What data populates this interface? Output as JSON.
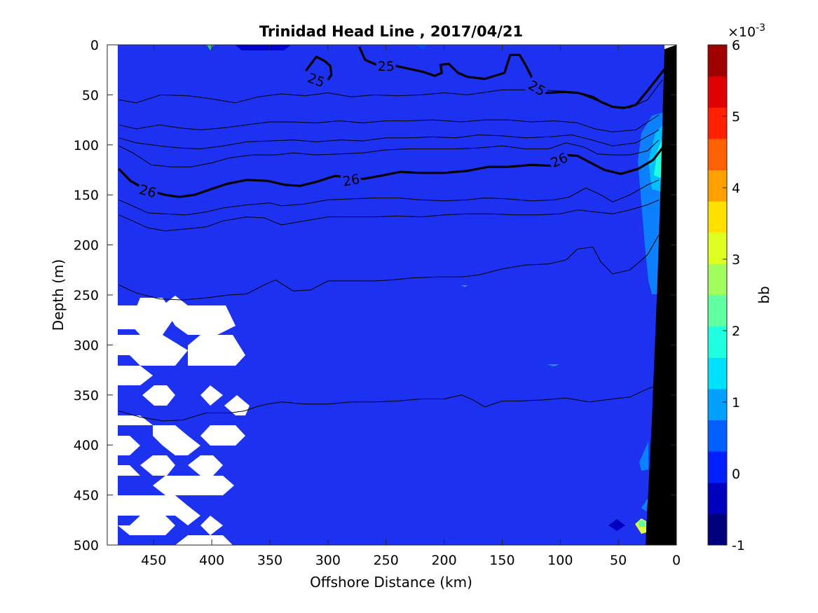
{
  "chart_data": {
    "type": "heatmap",
    "title": "Trinidad Head Line , 2017/04/21",
    "xlabel": "Offshore Distance (km)",
    "ylabel": "Depth (m)",
    "xlim": [
      490,
      0
    ],
    "ylim": [
      0,
      500
    ],
    "x_ticks": [
      "450",
      "400",
      "350",
      "300",
      "250",
      "200",
      "150",
      "100",
      "50",
      "0"
    ],
    "y_ticks": [
      "0",
      "50",
      "100",
      "150",
      "200",
      "250",
      "300",
      "350",
      "400",
      "450",
      "500"
    ],
    "colorbar": {
      "label": "bb",
      "exponent_prefix": "×10",
      "exponent": "-3",
      "range": [
        -1,
        6
      ],
      "tick_labels": [
        "6",
        "5",
        "4",
        "3",
        "2",
        "1",
        "0",
        "-1"
      ],
      "colors": [
        "#00007f",
        "#0000bf",
        "#0020ff",
        "#0060ff",
        "#00a0ff",
        "#00e0ff",
        "#20ffdf",
        "#60ff9f",
        "#a0ff5f",
        "#dfff20",
        "#ffe000",
        "#ffa000",
        "#ff6000",
        "#ff2000",
        "#df0000",
        "#a00000"
      ]
    },
    "background_value_color": "#1c32f0",
    "contour_labels": [
      {
        "text": "25",
        "x": 310,
        "y": 35,
        "angle": 20
      },
      {
        "text": "25",
        "x": 250,
        "y": 21,
        "angle": 0
      },
      {
        "text": "25",
        "x": 120,
        "y": 43,
        "angle": 30
      },
      {
        "text": "26",
        "x": 455,
        "y": 146,
        "angle": 15
      },
      {
        "text": "26",
        "x": 280,
        "y": 135,
        "angle": -10
      },
      {
        "text": "26",
        "x": 101,
        "y": 115,
        "angle": -25
      }
    ],
    "contours": {
      "bold": [
        {
          "level": "25",
          "pts": [
            [
              273,
              2
            ],
            [
              268,
              15
            ],
            [
              258,
              20
            ],
            [
              242,
              21
            ],
            [
              230,
              24
            ],
            [
              218,
              27
            ],
            [
              208,
              31
            ],
            [
              202,
              28
            ],
            [
              203,
              20
            ],
            [
              196,
              19
            ],
            [
              188,
              28
            ],
            [
              180,
              32
            ],
            [
              165,
              34
            ],
            [
              148,
              28
            ],
            [
              143,
              10
            ],
            [
              135,
              10
            ],
            [
              130,
              20
            ],
            [
              122,
              38
            ],
            [
              118,
              48
            ],
            [
              110,
              48
            ],
            [
              98,
              47
            ],
            [
              85,
              48
            ],
            [
              72,
              52
            ],
            [
              65,
              57
            ],
            [
              55,
              62
            ],
            [
              45,
              63
            ],
            [
              35,
              60
            ],
            [
              25,
              46
            ],
            [
              10,
              24
            ]
          ]
        },
        {
          "level": "25",
          "pts": [
            [
              319,
              26
            ],
            [
              310,
              12
            ],
            [
              303,
              16
            ],
            [
              298,
              21
            ],
            [
              297,
              30
            ],
            [
              300,
              35
            ]
          ]
        },
        {
          "level": "26",
          "pts": [
            [
              480,
              124
            ],
            [
              470,
              136
            ],
            [
              456,
              145
            ],
            [
              440,
              150
            ],
            [
              428,
              152
            ],
            [
              415,
              150
            ],
            [
              400,
              144
            ],
            [
              387,
              139
            ],
            [
              370,
              135
            ],
            [
              352,
              136
            ],
            [
              337,
              140
            ],
            [
              324,
              141
            ],
            [
              310,
              137
            ],
            [
              294,
              131
            ],
            [
              270,
              134
            ],
            [
              255,
              131
            ],
            [
              238,
              127
            ],
            [
              220,
              128
            ],
            [
              200,
              128
            ],
            [
              180,
              126
            ],
            [
              162,
              122
            ],
            [
              145,
              122
            ],
            [
              125,
              120
            ],
            [
              105,
              121
            ],
            [
              96,
              110
            ],
            [
              85,
              111
            ],
            [
              72,
              119
            ],
            [
              62,
              125
            ],
            [
              48,
              129
            ],
            [
              33,
              124
            ],
            [
              20,
              115
            ],
            [
              10,
              100
            ]
          ]
        }
      ],
      "thin": [
        [
          [
            480,
            55
          ],
          [
            465,
            58
          ],
          [
            444,
            50
          ],
          [
            420,
            51
          ],
          [
            400,
            54
          ],
          [
            380,
            58
          ],
          [
            360,
            52
          ],
          [
            340,
            49
          ],
          [
            320,
            51
          ],
          [
            300,
            48
          ],
          [
            280,
            52
          ],
          [
            260,
            50
          ],
          [
            240,
            51
          ],
          [
            220,
            50
          ],
          [
            200,
            48
          ],
          [
            180,
            50
          ],
          [
            150,
            45
          ],
          [
            120,
            45
          ],
          [
            100,
            46
          ],
          [
            85,
            48
          ],
          [
            70,
            55
          ],
          [
            55,
            62
          ],
          [
            40,
            63
          ],
          [
            25,
            55
          ],
          [
            12,
            35
          ]
        ],
        [
          [
            480,
            80
          ],
          [
            465,
            84
          ],
          [
            445,
            80
          ],
          [
            428,
            83
          ],
          [
            410,
            85
          ],
          [
            390,
            83
          ],
          [
            370,
            80
          ],
          [
            350,
            77
          ],
          [
            330,
            77
          ],
          [
            310,
            78
          ],
          [
            290,
            76
          ],
          [
            270,
            78
          ],
          [
            250,
            76
          ],
          [
            230,
            76
          ],
          [
            210,
            75
          ],
          [
            185,
            77
          ],
          [
            165,
            75
          ],
          [
            145,
            75
          ],
          [
            125,
            77
          ],
          [
            105,
            76
          ],
          [
            85,
            78
          ],
          [
            70,
            84
          ],
          [
            55,
            87
          ],
          [
            35,
            85
          ],
          [
            15,
            70
          ]
        ],
        [
          [
            480,
            93
          ],
          [
            465,
            98
          ],
          [
            445,
            101
          ],
          [
            428,
            103
          ],
          [
            410,
            104
          ],
          [
            390,
            101
          ],
          [
            370,
            97
          ],
          [
            350,
            96
          ],
          [
            330,
            95
          ],
          [
            310,
            97
          ],
          [
            290,
            95
          ],
          [
            270,
            96
          ],
          [
            250,
            93
          ],
          [
            230,
            93
          ],
          [
            210,
            92
          ],
          [
            190,
            93
          ],
          [
            170,
            90
          ],
          [
            150,
            91
          ],
          [
            130,
            93
          ],
          [
            110,
            92
          ],
          [
            90,
            90
          ],
          [
            70,
            96
          ],
          [
            55,
            101
          ],
          [
            35,
            98
          ],
          [
            15,
            85
          ]
        ],
        [
          [
            480,
            101
          ],
          [
            468,
            108
          ],
          [
            452,
            120
          ],
          [
            435,
            122
          ],
          [
            418,
            122
          ],
          [
            400,
            118
          ],
          [
            385,
            113
          ],
          [
            365,
            110
          ],
          [
            345,
            110
          ],
          [
            330,
            108
          ],
          [
            310,
            110
          ],
          [
            290,
            109
          ],
          [
            270,
            108
          ],
          [
            250,
            105
          ],
          [
            230,
            104
          ],
          [
            210,
            104
          ],
          [
            190,
            104
          ],
          [
            170,
            103
          ],
          [
            150,
            101
          ],
          [
            130,
            104
          ],
          [
            110,
            104
          ],
          [
            95,
            98
          ],
          [
            80,
            102
          ],
          [
            68,
            109
          ],
          [
            55,
            110
          ],
          [
            40,
            110
          ],
          [
            25,
            106
          ],
          [
            15,
            95
          ]
        ],
        [
          [
            480,
            155
          ],
          [
            470,
            160
          ],
          [
            455,
            168
          ],
          [
            440,
            169
          ],
          [
            422,
            170
          ],
          [
            405,
            167
          ],
          [
            390,
            163
          ],
          [
            370,
            160
          ],
          [
            350,
            158
          ],
          [
            340,
            161
          ],
          [
            320,
            159
          ],
          [
            300,
            155
          ],
          [
            280,
            154
          ],
          [
            260,
            153
          ],
          [
            240,
            153
          ],
          [
            220,
            155
          ],
          [
            200,
            156
          ],
          [
            180,
            155
          ],
          [
            165,
            153
          ],
          [
            145,
            154
          ],
          [
            125,
            156
          ],
          [
            105,
            155
          ],
          [
            92,
            152
          ],
          [
            78,
            143
          ],
          [
            65,
            150
          ],
          [
            55,
            157
          ],
          [
            40,
            150
          ],
          [
            25,
            140
          ],
          [
            15,
            135
          ]
        ],
        [
          [
            480,
            170
          ],
          [
            470,
            175
          ],
          [
            455,
            183
          ],
          [
            440,
            186
          ],
          [
            422,
            184
          ],
          [
            405,
            182
          ],
          [
            390,
            176
          ],
          [
            370,
            172
          ],
          [
            355,
            173
          ],
          [
            340,
            180
          ],
          [
            320,
            176
          ],
          [
            300,
            172
          ],
          [
            280,
            172
          ],
          [
            260,
            172
          ],
          [
            240,
            171
          ],
          [
            220,
            172
          ],
          [
            200,
            170
          ],
          [
            180,
            169
          ],
          [
            160,
            169
          ],
          [
            140,
            170
          ],
          [
            120,
            170
          ],
          [
            100,
            169
          ],
          [
            85,
            165
          ],
          [
            70,
            167
          ],
          [
            55,
            169
          ],
          [
            40,
            165
          ],
          [
            25,
            160
          ],
          [
            15,
            155
          ]
        ],
        [
          [
            480,
            240
          ],
          [
            465,
            248
          ],
          [
            445,
            254
          ],
          [
            425,
            255
          ],
          [
            405,
            253
          ],
          [
            385,
            250
          ],
          [
            370,
            249
          ],
          [
            355,
            240
          ],
          [
            345,
            235
          ],
          [
            330,
            246
          ],
          [
            315,
            245
          ],
          [
            300,
            236
          ],
          [
            280,
            236
          ],
          [
            260,
            236
          ],
          [
            245,
            235
          ],
          [
            228,
            233
          ],
          [
            205,
            232
          ],
          [
            185,
            232
          ],
          [
            170,
            230
          ],
          [
            150,
            224
          ],
          [
            130,
            220
          ],
          [
            110,
            219
          ],
          [
            95,
            215
          ],
          [
            85,
            204
          ],
          [
            72,
            202
          ],
          [
            65,
            217
          ],
          [
            55,
            229
          ],
          [
            40,
            225
          ],
          [
            25,
            210
          ],
          [
            15,
            190
          ]
        ],
        [
          [
            480,
            366
          ],
          [
            462,
            372
          ],
          [
            442,
            376
          ],
          [
            425,
            375
          ],
          [
            405,
            368
          ],
          [
            385,
            368
          ],
          [
            372,
            366
          ],
          [
            362,
            362
          ],
          [
            352,
            359
          ],
          [
            340,
            357
          ],
          [
            320,
            359
          ],
          [
            300,
            359
          ],
          [
            280,
            357
          ],
          [
            260,
            357
          ],
          [
            240,
            356
          ],
          [
            220,
            354
          ],
          [
            200,
            354
          ],
          [
            185,
            350
          ],
          [
            175,
            355
          ],
          [
            165,
            362
          ],
          [
            150,
            356
          ],
          [
            135,
            356
          ],
          [
            115,
            355
          ],
          [
            95,
            353
          ],
          [
            75,
            357
          ],
          [
            55,
            354
          ],
          [
            40,
            352
          ],
          [
            25,
            344
          ],
          [
            15,
            340
          ]
        ]
      ]
    }
  }
}
